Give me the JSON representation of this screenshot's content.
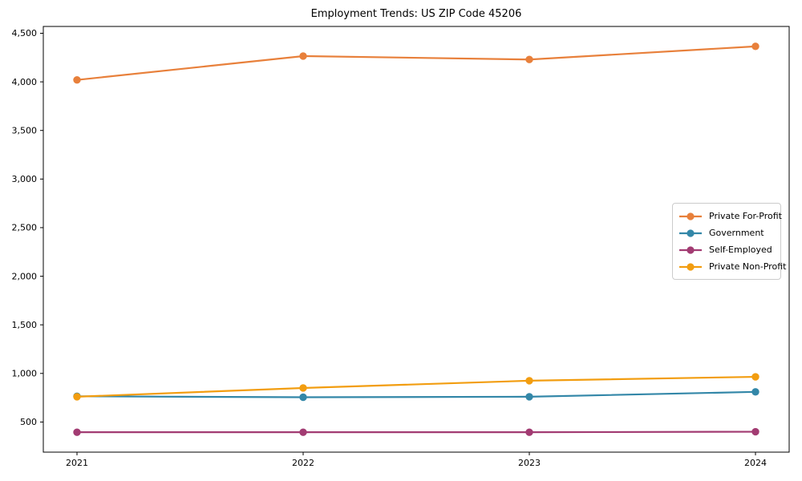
{
  "chart_data": {
    "type": "line",
    "title": "Employment Trends: US ZIP Code 45206",
    "categories": [
      "2021",
      "2022",
      "2023",
      "2024"
    ],
    "series": [
      {
        "name": "Private For-Profit",
        "color": "#E8803B",
        "values": [
          4020,
          4265,
          4230,
          4365
        ]
      },
      {
        "name": "Government",
        "color": "#3387A8",
        "values": [
          765,
          755,
          760,
          810
        ]
      },
      {
        "name": "Self-Employed",
        "color": "#A23B72",
        "values": [
          395,
          395,
          395,
          400
        ]
      },
      {
        "name": "Private Non-Profit",
        "color": "#F29D10",
        "values": [
          760,
          850,
          925,
          965
        ]
      }
    ],
    "xlabel": "",
    "ylabel": "",
    "ylim": [
      190,
      4570
    ],
    "yticks": [
      500,
      1000,
      1500,
      2000,
      2500,
      3000,
      3500,
      4000,
      4500
    ],
    "ytick_labels": [
      "500",
      "1,000",
      "1,500",
      "2,000",
      "2,500",
      "3,000",
      "3,500",
      "4,000",
      "4,500"
    ],
    "grid": false,
    "legend_position": "center-right",
    "marker": "circle",
    "axis_color": "#000000",
    "text_color": "#000000"
  }
}
